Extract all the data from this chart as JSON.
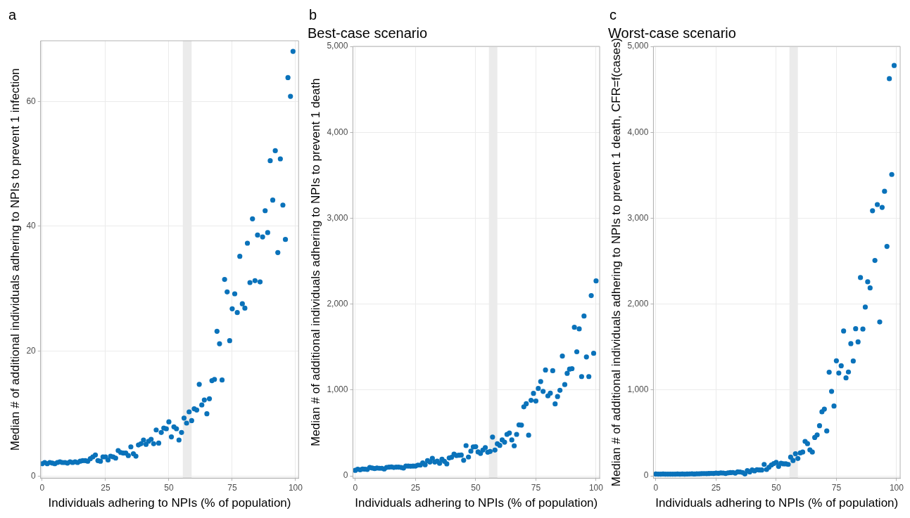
{
  "chart_data": [
    {
      "type": "scatter",
      "annotations": [
        "a"
      ],
      "xlabel": "Individuals adhering to NPIs (% of population)",
      "ylabel": "Median # of additional individuals adhering to NPIs to prevent 1 infection",
      "marker": "circle",
      "grid": true,
      "legend": false,
      "xlim": [
        -0.6,
        101.2
      ],
      "ylim": [
        -0.3,
        69.7
      ],
      "xticks": [
        0,
        25,
        50,
        75,
        100
      ],
      "yticks": [
        0,
        20,
        40,
        60
      ],
      "bands": [
        {
          "axis": "x",
          "from": 55.5,
          "to": 59,
          "color": "#ebebeb"
        }
      ],
      "series": [
        {
          "color": "#0a72ba",
          "x": [
            0,
            1,
            2,
            3,
            4,
            5,
            6,
            7,
            8,
            9,
            10,
            11,
            12,
            13,
            14,
            15,
            16,
            17,
            18,
            19,
            20,
            21,
            22,
            23,
            24,
            25,
            26,
            27,
            28,
            29,
            30,
            31,
            32,
            33,
            34,
            35,
            36,
            37,
            38,
            39,
            40,
            41,
            42,
            43,
            44,
            45,
            46,
            47,
            48,
            49,
            50,
            51,
            52,
            53,
            54,
            55,
            56,
            57,
            58,
            59,
            60,
            61,
            62,
            63,
            64,
            65,
            66,
            67,
            68,
            69,
            70,
            71,
            72,
            73,
            74,
            75,
            76,
            77,
            78,
            79,
            80,
            81,
            82,
            83,
            84,
            85,
            86,
            87,
            88,
            89,
            90,
            91,
            92,
            93,
            94,
            95,
            96,
            97,
            98,
            99
          ],
          "values": [
            2.0,
            2.2,
            2.0,
            2.2,
            2.1,
            2.0,
            2.2,
            2.3,
            2.2,
            2.2,
            2.1,
            2.3,
            2.2,
            2.3,
            2.2,
            2.4,
            2.5,
            2.5,
            2.4,
            2.8,
            3.1,
            3.4,
            2.5,
            2.4,
            3.1,
            3.1,
            2.6,
            3.2,
            3.1,
            2.9,
            4.1,
            3.8,
            3.7,
            3.7,
            3.3,
            4.7,
            3.6,
            3.2,
            5.0,
            5.2,
            5.8,
            5.1,
            5.6,
            5.9,
            5.2,
            7.4,
            5.3,
            7.0,
            7.7,
            7.6,
            8.7,
            6.3,
            7.9,
            7.6,
            5.8,
            7.0,
            9.3,
            8.5,
            10.3,
            8.9,
            10.8,
            10.6,
            14.7,
            11.4,
            12.2,
            10.0,
            12.4,
            15.3,
            15.5,
            23.2,
            21.2,
            15.4,
            31.5,
            29.5,
            21.7,
            26.8,
            29.2,
            26.2,
            35.2,
            27.6,
            26.9,
            37.3,
            31.0,
            41.2,
            31.3,
            38.6,
            31.1,
            38.3,
            42.5,
            39.0,
            50.5,
            44.2,
            52.1,
            35.8,
            50.8,
            43.4,
            37.9,
            63.8,
            60.8,
            68.0
          ]
        }
      ]
    },
    {
      "type": "scatter",
      "title": "Best-case scenario",
      "annotations": [
        "b"
      ],
      "xlabel": "Individuals adhering to NPIs (% of population)",
      "ylabel": "Median # of additional individuals adhering to NPIs to prevent 1 death",
      "marker": "circle",
      "grid": true,
      "legend": false,
      "xlim": [
        -1,
        101.5
      ],
      "ylim": [
        -25,
        5000
      ],
      "xticks": [
        0,
        25,
        50,
        75,
        100
      ],
      "yticks": [
        0,
        {
          "value": 1000,
          "label": "1,000"
        },
        {
          "value": 2000,
          "label": "2,000"
        },
        {
          "value": 3000,
          "label": "3,000"
        },
        {
          "value": 4000,
          "label": "4,000"
        },
        {
          "value": 5000,
          "label": "5,000"
        }
      ],
      "bands": [
        {
          "axis": "x",
          "from": 55.5,
          "to": 59,
          "color": "#ebebeb"
        }
      ],
      "series": [
        {
          "color": "#0a72ba",
          "x": [
            0,
            1,
            2,
            3,
            4,
            5,
            6,
            7,
            8,
            9,
            10,
            11,
            12,
            13,
            14,
            15,
            16,
            17,
            18,
            19,
            20,
            21,
            22,
            23,
            24,
            25,
            26,
            27,
            28,
            29,
            30,
            31,
            32,
            33,
            34,
            35,
            36,
            37,
            38,
            39,
            40,
            41,
            42,
            43,
            44,
            45,
            46,
            47,
            48,
            49,
            50,
            51,
            52,
            53,
            54,
            55,
            56,
            57,
            58,
            59,
            60,
            61,
            62,
            63,
            64,
            65,
            66,
            67,
            68,
            69,
            70,
            71,
            72,
            73,
            74,
            75,
            76,
            77,
            78,
            79,
            80,
            81,
            82,
            83,
            84,
            85,
            86,
            87,
            88,
            89,
            90,
            91,
            92,
            93,
            94,
            95,
            96,
            97,
            98,
            99,
            100
          ],
          "values": [
            65,
            79,
            71,
            81,
            79,
            76,
            99,
            92,
            86,
            92,
            89,
            89,
            81,
            99,
            102,
            105,
            99,
            102,
            102,
            99,
            92,
            115,
            115,
            113,
            115,
            115,
            126,
            126,
            152,
            131,
            178,
            162,
            204,
            162,
            173,
            147,
            194,
            170,
            141,
            209,
            217,
            254,
            238,
            241,
            243,
            183,
            353,
            220,
            288,
            338,
            340,
            280,
            262,
            301,
            330,
            277,
            285,
            453,
            301,
            374,
            356,
            419,
            393,
            484,
            500,
            419,
            351,
            484,
            594,
            592,
            804,
            840,
            474,
            880,
            961,
            872,
            1018,
            1099,
            984,
            1233,
            932,
            963,
            1225,
            838,
            924,
            997,
            1395,
            1063,
            1194,
            1243,
            1249,
            1730,
            1445,
            1712,
            1157,
            1861,
            1385,
            1157,
            2099,
            1427,
            2270
          ]
        }
      ]
    },
    {
      "type": "scatter",
      "title": "Worst-case scenario",
      "annotations": [
        "c"
      ],
      "xlabel": "Individuals adhering to NPIs (% of population)",
      "ylabel": "Median # of additional individuals adhering to NPIs to prevent 1 death, CFR=f(cases)",
      "marker": "circle",
      "grid": true,
      "legend": false,
      "xlim": [
        -1,
        101.5
      ],
      "ylim": [
        -25,
        5000
      ],
      "xticks": [
        0,
        25,
        50,
        75,
        100
      ],
      "yticks": [
        0,
        {
          "value": 1000,
          "label": "1,000"
        },
        {
          "value": 2000,
          "label": "2,000"
        },
        {
          "value": 3000,
          "label": "3,000"
        },
        {
          "value": 4000,
          "label": "4,000"
        },
        {
          "value": 5000,
          "label": "5,000"
        }
      ],
      "bands": [
        {
          "axis": "x",
          "from": 55.5,
          "to": 59,
          "color": "#ebebeb"
        }
      ],
      "series": [
        {
          "color": "#0a72ba",
          "x": [
            0,
            1,
            2,
            3,
            4,
            5,
            6,
            7,
            8,
            9,
            10,
            11,
            12,
            13,
            14,
            15,
            16,
            17,
            18,
            19,
            20,
            21,
            22,
            23,
            24,
            25,
            26,
            27,
            28,
            29,
            30,
            31,
            32,
            33,
            34,
            35,
            36,
            37,
            38,
            39,
            40,
            41,
            42,
            43,
            44,
            45,
            46,
            47,
            48,
            49,
            50,
            51,
            52,
            53,
            54,
            55,
            56,
            57,
            58,
            59,
            60,
            61,
            62,
            63,
            64,
            65,
            66,
            67,
            68,
            69,
            70,
            71,
            72,
            73,
            74,
            75,
            76,
            77,
            78,
            79,
            80,
            81,
            82,
            83,
            84,
            85,
            86,
            87,
            88,
            89,
            90,
            91,
            92,
            93,
            94,
            95,
            96,
            97,
            98,
            99
          ],
          "values": [
            22,
            20,
            21,
            22,
            20,
            21,
            20,
            21,
            20,
            22,
            21,
            22,
            21,
            22,
            23,
            24,
            22,
            25,
            24,
            26,
            27,
            26,
            28,
            30,
            29,
            33,
            31,
            35,
            34,
            29,
            36,
            39,
            40,
            33,
            48,
            46,
            40,
            23,
            62,
            46,
            69,
            59,
            72,
            69,
            69,
            134,
            75,
            101,
            128,
            144,
            157,
            111,
            147,
            141,
            141,
            134,
            219,
            180,
            258,
            203,
            268,
            278,
            402,
            376,
            304,
            278,
            448,
            477,
            585,
            746,
            778,
            523,
            1207,
            984,
            814,
            1340,
            1197,
            1282,
            1687,
            1141,
            1210,
            1540,
            1337,
            1714,
            1560,
            2309,
            1710,
            1965,
            2260,
            2188,
            3087,
            2508,
            3159,
            1792,
            3126,
            3313,
            2672,
            4624,
            3509,
            4778
          ]
        }
      ]
    }
  ]
}
